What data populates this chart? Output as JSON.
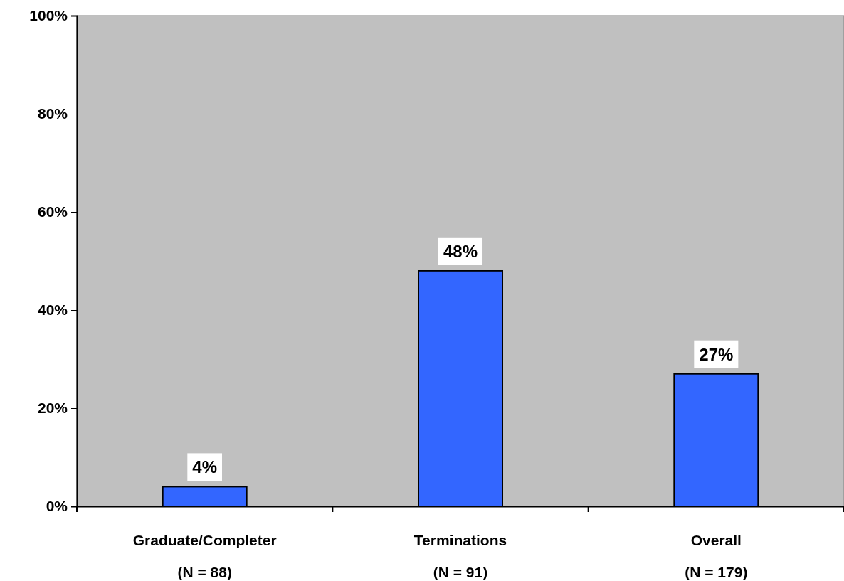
{
  "chart_data": {
    "type": "bar",
    "categories": [
      "Graduate/Completer\n(N = 88)",
      "Terminations\n(N = 91)",
      "Overall\n(N = 179)"
    ],
    "values": [
      4,
      48,
      27
    ],
    "color": "#3366ff",
    "value_labels": [
      "4%",
      "48%",
      "27%"
    ],
    "ylim": [
      0,
      100
    ],
    "yticks": [
      {
        "value": 0,
        "label": "0%"
      },
      {
        "value": 20,
        "label": "20%"
      },
      {
        "value": 40,
        "label": "40%"
      },
      {
        "value": 60,
        "label": "60%"
      },
      {
        "value": 80,
        "label": "80%"
      },
      {
        "value": 100,
        "label": "100%"
      }
    ],
    "grid": false
  }
}
